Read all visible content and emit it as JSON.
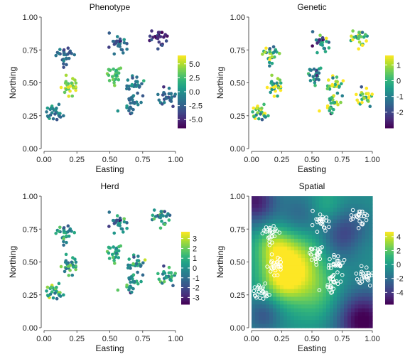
{
  "chart_data": [
    {
      "type": "scatter",
      "title": "Phenotype",
      "xlabel": "Easting",
      "ylabel": "Northing",
      "xlim": [
        0,
        1
      ],
      "ylim": [
        0,
        1
      ],
      "xticks": [
        "0.00",
        "0.25",
        "0.50",
        "0.75",
        "1.00"
      ],
      "yticks": [
        "0.00",
        "0.25",
        "0.50",
        "0.75",
        "1.00"
      ],
      "colorbar": {
        "min": -6.5,
        "max": 6.5,
        "ticks": [
          "5.0",
          "2.5",
          "0.0",
          "-2.5",
          "-5.0"
        ],
        "tick_values": [
          5,
          2.5,
          0,
          -2.5,
          -5
        ]
      },
      "clusters": [
        {
          "x": 0.16,
          "y": 0.71,
          "value": -2.0
        },
        {
          "x": 0.19,
          "y": 0.47,
          "value": 4.5
        },
        {
          "x": 0.08,
          "y": 0.27,
          "value": -1.0
        },
        {
          "x": 0.53,
          "y": 0.56,
          "value": 2.8
        },
        {
          "x": 0.57,
          "y": 0.8,
          "value": -2.2
        },
        {
          "x": 0.7,
          "y": 0.48,
          "value": -1.2
        },
        {
          "x": 0.68,
          "y": 0.34,
          "value": -1.5
        },
        {
          "x": 0.88,
          "y": 0.85,
          "value": -5.0
        },
        {
          "x": 0.93,
          "y": 0.39,
          "value": -2.0
        }
      ],
      "colorbar_palette": "viridis"
    },
    {
      "type": "scatter",
      "title": "Genetic",
      "xlabel": "Easting",
      "ylabel": "Northing",
      "xlim": [
        0,
        1
      ],
      "ylim": [
        0,
        1
      ],
      "xticks": [
        "0.00",
        "0.25",
        "0.50",
        "0.75",
        "1.00"
      ],
      "yticks": [
        "0.00",
        "0.25",
        "0.50",
        "0.75",
        "1.00"
      ],
      "colorbar": {
        "min": -3,
        "max": 1.6,
        "ticks": [
          "1",
          "0",
          "-1",
          "-2"
        ],
        "tick_values": [
          1,
          0,
          -1,
          -2
        ]
      },
      "clusters": [
        {
          "x": 0.16,
          "y": 0.72,
          "value": 0.3
        },
        {
          "x": 0.19,
          "y": 0.47,
          "value": 0.6
        },
        {
          "x": 0.07,
          "y": 0.27,
          "value": 0.4
        },
        {
          "x": 0.52,
          "y": 0.56,
          "value": -1.0
        },
        {
          "x": 0.58,
          "y": 0.81,
          "value": -1.0
        },
        {
          "x": 0.7,
          "y": 0.48,
          "value": 0.7
        },
        {
          "x": 0.68,
          "y": 0.34,
          "value": 0.4
        },
        {
          "x": 0.9,
          "y": 0.85,
          "value": 0.3
        },
        {
          "x": 0.93,
          "y": 0.39,
          "value": 1.0
        }
      ],
      "colorbar_palette": "viridis"
    },
    {
      "type": "scatter",
      "title": "Herd",
      "xlabel": "Easting",
      "ylabel": "Northing",
      "xlim": [
        0,
        1
      ],
      "ylim": [
        0,
        1
      ],
      "xticks": [
        "0.00",
        "0.25",
        "0.50",
        "0.75",
        "1.00"
      ],
      "yticks": [
        "0.00",
        "0.25",
        "0.50",
        "0.75",
        "1.00"
      ],
      "colorbar": {
        "min": -3.7,
        "max": 3.7,
        "ticks": [
          "3",
          "2",
          "1",
          "0",
          "-1",
          "-2",
          "-3"
        ],
        "tick_values": [
          3,
          2,
          1,
          0,
          -1,
          -2,
          -3
        ]
      },
      "clusters": [
        {
          "x": 0.16,
          "y": 0.72,
          "value": 0.3
        },
        {
          "x": 0.19,
          "y": 0.47,
          "value": 0.5
        },
        {
          "x": 0.08,
          "y": 0.27,
          "value": 0.8
        },
        {
          "x": 0.53,
          "y": 0.57,
          "value": 0.8
        },
        {
          "x": 0.57,
          "y": 0.8,
          "value": -0.5
        },
        {
          "x": 0.71,
          "y": 0.48,
          "value": 0.0
        },
        {
          "x": 0.68,
          "y": 0.34,
          "value": 0.2
        },
        {
          "x": 0.9,
          "y": 0.85,
          "value": -0.3
        },
        {
          "x": 0.93,
          "y": 0.39,
          "value": 0.6
        }
      ],
      "colorbar_palette": "viridis"
    },
    {
      "type": "heatmap",
      "title": "Spatial",
      "xlabel": "Easting",
      "ylabel": "Northing",
      "xlim": [
        0,
        1
      ],
      "ylim": [
        0,
        1
      ],
      "xticks": [
        "0.00",
        "0.25",
        "0.50",
        "0.75",
        "1.00"
      ],
      "yticks": [
        "0.00",
        "0.25",
        "0.50",
        "0.75",
        "1.00"
      ],
      "colorbar": {
        "min": -5.7,
        "max": 4.7,
        "ticks": [
          "4",
          "2",
          "0",
          "-2",
          "-4"
        ],
        "tick_values": [
          4,
          2,
          0,
          -2,
          -4
        ]
      },
      "field_features": [
        {
          "x": 0.35,
          "y": 0.5,
          "value": 4.5,
          "spread": 0.17
        },
        {
          "x": 0.25,
          "y": 0.36,
          "value": 3.0,
          "spread": 0.12
        },
        {
          "x": 0.55,
          "y": 0.25,
          "value": 2.0,
          "spread": 0.15
        },
        {
          "x": 0.18,
          "y": 0.62,
          "value": 2.5,
          "spread": 0.1
        },
        {
          "x": 0.62,
          "y": 0.92,
          "value": 1.5,
          "spread": 0.1
        },
        {
          "x": 0.88,
          "y": 0.62,
          "value": 1.0,
          "spread": 0.1
        },
        {
          "x": 0.92,
          "y": 0.05,
          "value": -5.5,
          "spread": 0.16
        },
        {
          "x": 0.03,
          "y": 0.96,
          "value": -4.5,
          "spread": 0.12
        },
        {
          "x": 0.78,
          "y": 0.7,
          "value": -3.5,
          "spread": 0.14
        },
        {
          "x": 0.1,
          "y": 0.1,
          "value": -2.5,
          "spread": 0.1
        },
        {
          "x": 0.4,
          "y": 0.85,
          "value": -2.0,
          "spread": 0.12
        }
      ],
      "point_clusters": [
        {
          "x": 0.16,
          "y": 0.72
        },
        {
          "x": 0.19,
          "y": 0.47
        },
        {
          "x": 0.08,
          "y": 0.27
        },
        {
          "x": 0.53,
          "y": 0.56
        },
        {
          "x": 0.58,
          "y": 0.81
        },
        {
          "x": 0.71,
          "y": 0.48
        },
        {
          "x": 0.68,
          "y": 0.34
        },
        {
          "x": 0.9,
          "y": 0.85
        },
        {
          "x": 0.93,
          "y": 0.39
        }
      ],
      "point_color": "#ffffff",
      "colorbar_palette": "viridis"
    }
  ]
}
